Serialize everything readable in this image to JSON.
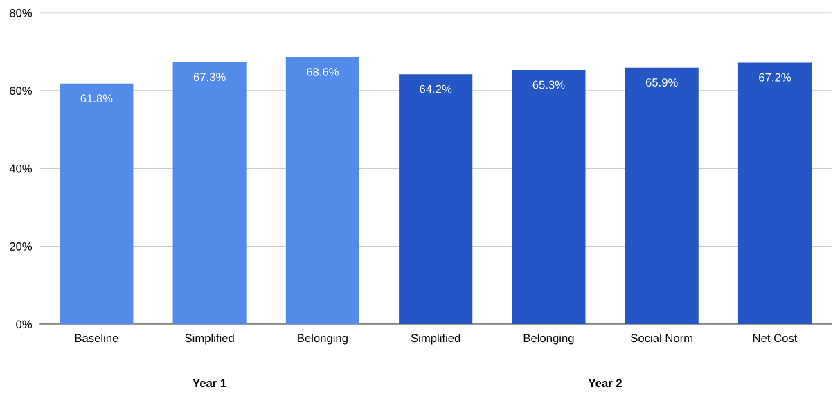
{
  "chart_data": {
    "type": "bar",
    "categories": [
      "Baseline",
      "Simplified",
      "Belonging",
      "Simplified",
      "Belonging",
      "Social Norm",
      "Net Cost"
    ],
    "values": [
      61.8,
      67.3,
      68.6,
      64.2,
      65.3,
      65.9,
      67.2
    ],
    "colors": [
      "#528be9",
      "#528be9",
      "#528be9",
      "#2457c5",
      "#2457c5",
      "#2457c5",
      "#2457c5"
    ],
    "value_labels": [
      "61.8%",
      "67.3%",
      "68.6%",
      "64.2%",
      "65.3%",
      "65.9%",
      "67.2%"
    ],
    "ylim": [
      0,
      80
    ],
    "yticks": [
      {
        "value": 0,
        "label": "0%"
      },
      {
        "value": 20,
        "label": "20%"
      },
      {
        "value": 40,
        "label": "40%"
      },
      {
        "value": 60,
        "label": "60%"
      },
      {
        "value": 80,
        "label": "80%"
      }
    ],
    "grid": "y",
    "annotations": [
      "Year 1",
      "Year 2"
    ]
  }
}
